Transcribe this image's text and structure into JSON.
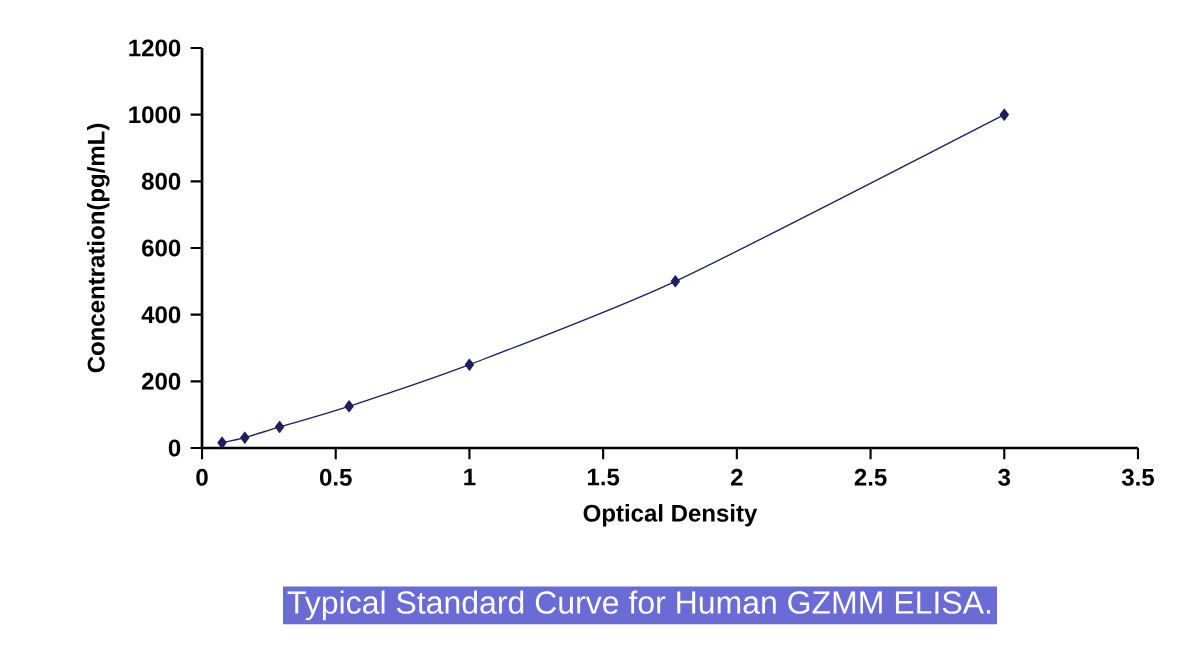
{
  "chart_data": {
    "type": "line",
    "title": "Typical Standard Curve for Human GZMM ELISA.",
    "xlabel": "Optical Density",
    "ylabel": "Concentration(pg/mL)",
    "x": [
      0.075,
      0.16,
      0.29,
      0.55,
      1.0,
      1.77,
      3.0
    ],
    "series": [
      {
        "color": "#1f1f5f",
        "values": [
          16,
          31,
          63,
          125,
          250,
          500,
          1000
        ]
      }
    ],
    "marker": "diamond",
    "line_style": "solid",
    "grid": false,
    "xlim": [
      0,
      3.5
    ],
    "xticks": [
      0,
      0.5,
      1,
      1.5,
      2,
      2.5,
      3,
      3.5
    ],
    "ylim": [
      0,
      1200
    ],
    "yticks": [
      0,
      200,
      400,
      600,
      800,
      1000,
      1200
    ]
  }
}
